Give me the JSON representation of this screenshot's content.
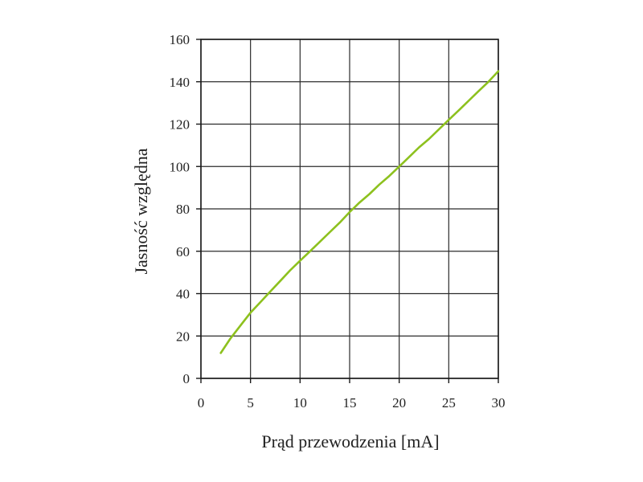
{
  "chart_data": {
    "type": "line",
    "xlabel": "Prąd przewodzenia [mA]",
    "ylabel": "Jasność względna",
    "xlim": [
      0,
      30
    ],
    "ylim": [
      0,
      160
    ],
    "x_ticks": [
      "0",
      "5",
      "10",
      "15",
      "20",
      "25",
      "30"
    ],
    "y_ticks": [
      "0",
      "20",
      "40",
      "60",
      "80",
      "100",
      "120",
      "140",
      "160"
    ],
    "grid": true,
    "series": [
      {
        "color": "#8dc11e",
        "x": [
          2,
          3,
          4,
          5,
          6,
          7,
          8,
          9,
          10,
          11,
          12,
          13,
          14,
          15,
          16,
          17,
          18,
          19,
          20,
          21,
          22,
          23,
          24,
          25,
          26,
          27,
          28,
          29,
          30
        ],
        "y": [
          12,
          19,
          25,
          31,
          36,
          41,
          46,
          51,
          55.5,
          60,
          64.5,
          69,
          73.5,
          78.5,
          83,
          87,
          91.5,
          95.5,
          100,
          104.5,
          109,
          113,
          117.5,
          122,
          126.5,
          131,
          135.5,
          140,
          145
        ]
      }
    ]
  }
}
